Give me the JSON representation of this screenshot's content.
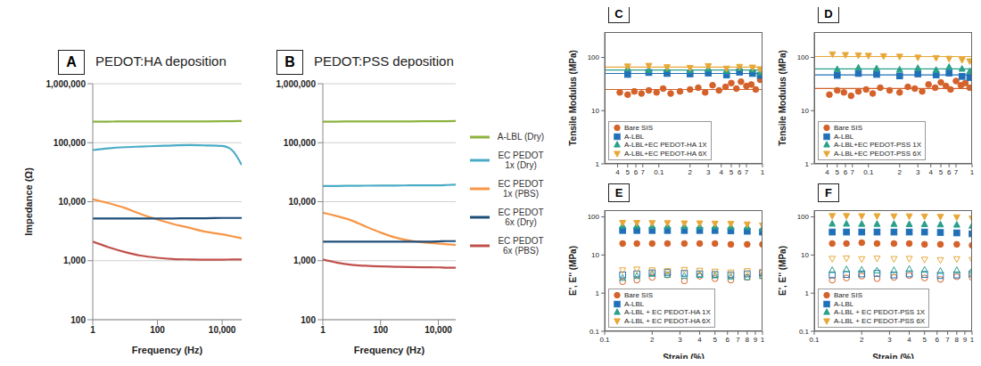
{
  "chart_data": [
    {
      "type": "line",
      "panel_label": "A",
      "title": "PEDOT:HA deposition",
      "x_label": "Frequency (Hz)",
      "y_label": "Impedance (Ω)",
      "log": true,
      "grid": true,
      "x": [
        1,
        3,
        10,
        30,
        100,
        300,
        1000,
        3000,
        10000,
        20000,
        40000
      ],
      "xlim": [
        1,
        40000
      ],
      "xticks": [
        1,
        100,
        {
          "value": 10000,
          "label": "10,000"
        }
      ],
      "ylim": [
        100,
        1000000
      ],
      "yticks": [
        100,
        {
          "value": 1000,
          "label": "1,000"
        },
        {
          "value": 10000,
          "label": "10,000"
        },
        {
          "value": 100000,
          "label": "100,000"
        },
        {
          "value": 1000000,
          "label": "1,000,000"
        }
      ],
      "series": [
        {
          "name": "A-LBL (Dry)",
          "color": "#8cb33e",
          "values": [
            228000,
            228000,
            229000,
            229000,
            230000,
            230000,
            230000,
            230000,
            231000,
            232000,
            234000
          ]
        },
        {
          "name": "EC PEDOT 1x (Dry)",
          "color": "#4bacc6",
          "values": [
            75000,
            80000,
            84000,
            86000,
            88000,
            90000,
            91000,
            90000,
            88000,
            75000,
            42000
          ]
        },
        {
          "name": "EC PEDOT 1x (PBS)",
          "color": "#f79646",
          "values": [
            11000,
            9500,
            7800,
            6200,
            5000,
            4200,
            3600,
            3100,
            2800,
            2600,
            2400
          ]
        },
        {
          "name": "EC PEDOT 6x (Dry)",
          "color": "#1f4e79",
          "values": [
            5200,
            5200,
            5200,
            5200,
            5200,
            5200,
            5250,
            5250,
            5300,
            5300,
            5300
          ]
        },
        {
          "name": "EC PEDOT 6x (PBS)",
          "color": "#c0504d",
          "values": [
            2100,
            1700,
            1400,
            1220,
            1120,
            1070,
            1050,
            1040,
            1040,
            1050,
            1050
          ]
        }
      ]
    },
    {
      "type": "line",
      "panel_label": "B",
      "title": "PEDOT:PSS deposition",
      "x_label": "Frequency (Hz)",
      "log": true,
      "grid": true,
      "legend": "right",
      "x": [
        1,
        3,
        10,
        30,
        100,
        300,
        1000,
        3000,
        10000,
        20000,
        40000
      ],
      "xlim": [
        1,
        40000
      ],
      "xticks": [
        1,
        100,
        {
          "value": 10000,
          "label": "10,000"
        }
      ],
      "ylim": [
        100,
        1000000
      ],
      "yticks": [
        100,
        {
          "value": 1000,
          "label": "1,000"
        },
        {
          "value": 10000,
          "label": "10,000"
        },
        {
          "value": 100000,
          "label": "100,000"
        },
        {
          "value": 1000000,
          "label": "1,000,000"
        }
      ],
      "series": [
        {
          "name": "A-LBL (Dry)",
          "color": "#8cb33e",
          "values": [
            228000,
            228000,
            229000,
            229000,
            230000,
            230000,
            230000,
            231000,
            231000,
            232000,
            233000
          ]
        },
        {
          "name": "EC PEDOT 1x (Dry)",
          "color": "#4bacc6",
          "values": [
            18500,
            18500,
            18600,
            18700,
            18800,
            18800,
            18900,
            19000,
            19000,
            19200,
            19500
          ]
        },
        {
          "name": "EC PEDOT 1x (PBS)",
          "color": "#f79646",
          "values": [
            6500,
            5700,
            4800,
            3800,
            3000,
            2500,
            2200,
            2050,
            1950,
            1900,
            1850
          ]
        },
        {
          "name": "EC PEDOT 6x (Dry)",
          "color": "#1f4e79",
          "values": [
            2100,
            2100,
            2100,
            2100,
            2100,
            2100,
            2100,
            2100,
            2120,
            2150,
            2150
          ]
        },
        {
          "name": "EC PEDOT 6x (PBS)",
          "color": "#c0504d",
          "values": [
            1050,
            930,
            850,
            820,
            800,
            790,
            780,
            775,
            770,
            760,
            760
          ]
        }
      ]
    },
    {
      "type": "scatter",
      "panel_label": "C",
      "y_label": "Tensile Modulus (MPa)",
      "log": true,
      "legend": "bottom-left",
      "xlim": [
        0.03,
        1
      ],
      "xticks": [
        {
          "value": 0.04,
          "label": "4"
        },
        {
          "value": 0.05,
          "label": "5"
        },
        {
          "value": 0.06,
          "label": "6"
        },
        {
          "value": 0.07,
          "label": "7"
        },
        0.1,
        {
          "value": 0.2,
          "label": "2"
        },
        {
          "value": 0.3,
          "label": "3"
        },
        {
          "value": 0.4,
          "label": "4"
        },
        {
          "value": 0.5,
          "label": "5"
        },
        {
          "value": 0.6,
          "label": "6"
        },
        {
          "value": 0.7,
          "label": "7"
        },
        1
      ],
      "ylim": [
        1,
        300
      ],
      "yticks": [
        1,
        10,
        100
      ],
      "series": [
        {
          "name": "Bare SIS",
          "color": "#d4622a",
          "marker": "circle",
          "fit": 25,
          "x": [
            0.042,
            0.05,
            0.058,
            0.068,
            0.08,
            0.095,
            0.11,
            0.13,
            0.16,
            0.2,
            0.24,
            0.28,
            0.33,
            0.38,
            0.44,
            0.5,
            0.56,
            0.62,
            0.7,
            0.78,
            0.86,
            0.95
          ],
          "values": [
            22,
            20,
            23,
            21,
            24,
            22,
            26,
            21,
            23,
            25,
            27,
            22,
            30,
            24,
            28,
            33,
            26,
            35,
            29,
            31,
            25,
            38
          ]
        },
        {
          "name": "A-LBL",
          "color": "#2070b8",
          "marker": "square",
          "fit": 50,
          "x": [
            0.05,
            0.08,
            0.12,
            0.2,
            0.3,
            0.45,
            0.6,
            0.8,
            0.95
          ],
          "values": [
            48,
            52,
            50,
            49,
            51,
            47,
            53,
            50,
            46
          ]
        },
        {
          "name": "A-LBL+EC PEDOT-HA 1X",
          "color": "#2aa08a",
          "marker": "triangle",
          "fit": 58,
          "x": [
            0.05,
            0.08,
            0.12,
            0.2,
            0.3,
            0.45,
            0.6,
            0.8,
            0.95
          ],
          "values": [
            62,
            58,
            60,
            57,
            61,
            55,
            63,
            59,
            52
          ]
        },
        {
          "name": "A-LBL+EC PEDOT-HA 6X",
          "color": "#e8a838",
          "marker": "triangle-down",
          "fit": 66,
          "x": [
            0.05,
            0.08,
            0.12,
            0.2,
            0.3,
            0.45,
            0.6,
            0.8,
            0.95
          ],
          "values": [
            68,
            70,
            66,
            64,
            69,
            62,
            67,
            65,
            60
          ]
        }
      ]
    },
    {
      "type": "scatter",
      "panel_label": "D",
      "y_label": "Tensile Modulus (MPa)",
      "log": true,
      "legend": "bottom-left",
      "xlim": [
        0.03,
        1
      ],
      "xticks": [
        {
          "value": 0.04,
          "label": "4"
        },
        {
          "value": 0.05,
          "label": "5"
        },
        {
          "value": 0.06,
          "label": "6"
        },
        {
          "value": 0.07,
          "label": "7"
        },
        0.1,
        {
          "value": 0.2,
          "label": "2"
        },
        {
          "value": 0.3,
          "label": "3"
        },
        {
          "value": 0.4,
          "label": "4"
        },
        {
          "value": 0.5,
          "label": "5"
        },
        {
          "value": 0.6,
          "label": "6"
        },
        {
          "value": 0.7,
          "label": "7"
        },
        1
      ],
      "ylim": [
        1,
        300
      ],
      "yticks": [
        1,
        10,
        100
      ],
      "series": [
        {
          "name": "Bare SIS",
          "color": "#d4622a",
          "marker": "circle",
          "fit": 26,
          "x": [
            0.042,
            0.05,
            0.058,
            0.068,
            0.08,
            0.095,
            0.11,
            0.13,
            0.16,
            0.2,
            0.24,
            0.28,
            0.33,
            0.38,
            0.44,
            0.5,
            0.56,
            0.62,
            0.7,
            0.78,
            0.86,
            0.95
          ],
          "values": [
            20,
            24,
            22,
            19,
            23,
            25,
            21,
            27,
            24,
            22,
            28,
            26,
            23,
            31,
            27,
            34,
            29,
            25,
            36,
            30,
            33,
            27
          ]
        },
        {
          "name": "A-LBL",
          "color": "#2070b8",
          "marker": "square",
          "fit": 47,
          "x": [
            0.05,
            0.08,
            0.12,
            0.2,
            0.3,
            0.45,
            0.6,
            0.8,
            0.95
          ],
          "values": [
            46,
            50,
            48,
            45,
            49,
            47,
            51,
            44,
            42
          ]
        },
        {
          "name": "A-LBL+EC PEDOT-PSS 1X",
          "color": "#2aa08a",
          "marker": "triangle",
          "fit": 61,
          "x": [
            0.05,
            0.08,
            0.12,
            0.2,
            0.3,
            0.45,
            0.6,
            0.8,
            0.95
          ],
          "values": [
            60,
            64,
            62,
            59,
            63,
            58,
            66,
            61,
            55
          ]
        },
        {
          "name": "A-LBL+EC PEDOT-PSS 6X",
          "color": "#e8a838",
          "marker": "triangle-down",
          "fit": 104,
          "x": [
            0.045,
            0.06,
            0.08,
            0.1,
            0.14,
            0.2,
            0.3,
            0.45,
            0.6,
            0.8,
            0.95
          ],
          "values": [
            115,
            112,
            110,
            108,
            106,
            104,
            100,
            98,
            95,
            90,
            85
          ]
        }
      ]
    },
    {
      "type": "scatter",
      "panel_label": "E",
      "x_label": "Strain (%)",
      "y_label": "E', E'' (MPa)",
      "log": true,
      "legend": "bottom-left",
      "x": [
        0.13,
        0.16,
        0.2,
        0.25,
        0.32,
        0.4,
        0.5,
        0.63,
        0.8,
        1.0
      ],
      "xlim": [
        0.1,
        1
      ],
      "xticks": [
        0.1,
        {
          "value": 0.2,
          "label": "2"
        },
        {
          "value": 0.3,
          "label": "3"
        },
        {
          "value": 0.4,
          "label": "4"
        },
        {
          "value": 0.5,
          "label": "5"
        },
        {
          "value": 0.6,
          "label": "6"
        },
        {
          "value": 0.7,
          "label": "7"
        },
        {
          "value": 0.8,
          "label": "8"
        },
        {
          "value": 0.9,
          "label": "9"
        },
        1
      ],
      "ylim": [
        0.1,
        150
      ],
      "yticks": [
        0.1,
        1,
        10,
        100
      ],
      "series": [
        {
          "name": "Bare SIS",
          "color": "#d4622a",
          "marker": "circle",
          "values": [
            20,
            20,
            20,
            20,
            20,
            20,
            20,
            19,
            19,
            19
          ],
          "loss_values": [
            2.0,
            2.2,
            2.6,
            3.0,
            2.1,
            2.8,
            2.4,
            2.2,
            2.6,
            2.8
          ]
        },
        {
          "name": "A-LBL",
          "color": "#2070b8",
          "marker": "square",
          "values": [
            44,
            44,
            44,
            44,
            44,
            44,
            44,
            43,
            42,
            40
          ],
          "loss_values": [
            3.0,
            3.2,
            3.4,
            3.5,
            3.3,
            3.2,
            3.1,
            3.0,
            3.2,
            3.4
          ]
        },
        {
          "name": "A-LBL + EC PEDOT-HA 1X",
          "color": "#2aa08a",
          "marker": "triangle",
          "values": [
            58,
            58,
            57,
            57,
            57,
            56,
            56,
            55,
            54,
            50
          ],
          "loss_values": [
            2.5,
            2.8,
            3.2,
            3.0,
            2.8,
            3.0,
            2.9,
            2.7,
            2.6,
            2.8
          ]
        },
        {
          "name": "A-LBL + EC PEDOT-HA 6X",
          "color": "#e8a838",
          "marker": "triangle-down",
          "values": [
            70,
            70,
            69,
            69,
            68,
            68,
            67,
            66,
            64,
            60
          ],
          "loss_values": [
            4.0,
            4.2,
            4.0,
            3.8,
            4.1,
            3.9,
            3.7,
            3.5,
            3.8,
            3.6
          ]
        }
      ]
    },
    {
      "type": "scatter",
      "panel_label": "F",
      "x_label": "Strain (%)",
      "y_label": "E', E'' (MPa)",
      "log": true,
      "legend": "bottom-left",
      "x": [
        0.13,
        0.16,
        0.2,
        0.25,
        0.32,
        0.4,
        0.5,
        0.63,
        0.8,
        1.0
      ],
      "xlim": [
        0.1,
        1
      ],
      "xticks": [
        0.1,
        {
          "value": 0.2,
          "label": "2"
        },
        {
          "value": 0.3,
          "label": "3"
        },
        {
          "value": 0.4,
          "label": "4"
        },
        {
          "value": 0.5,
          "label": "5"
        },
        {
          "value": 0.6,
          "label": "6"
        },
        {
          "value": 0.7,
          "label": "7"
        },
        {
          "value": 0.8,
          "label": "8"
        },
        {
          "value": 0.9,
          "label": "9"
        },
        1
      ],
      "ylim": [
        0.1,
        150
      ],
      "yticks": [
        0.1,
        1,
        10,
        100
      ],
      "series": [
        {
          "name": "Bare SIS",
          "color": "#d4622a",
          "marker": "circle",
          "values": [
            20,
            20,
            21,
            20,
            20,
            20,
            19,
            19,
            19,
            18
          ],
          "loss_values": [
            2.2,
            2.5,
            2.8,
            2.4,
            2.6,
            2.9,
            2.5,
            2.3,
            2.7,
            2.6
          ]
        },
        {
          "name": "A-LBL",
          "color": "#2070b8",
          "marker": "square",
          "values": [
            40,
            40,
            40,
            40,
            40,
            40,
            40,
            39,
            38,
            36
          ],
          "loss_values": [
            3.0,
            3.1,
            3.2,
            3.3,
            3.0,
            3.2,
            3.1,
            2.9,
            3.0,
            3.2
          ]
        },
        {
          "name": "A-LBL + EC PEDOT-PSS 1X",
          "color": "#2aa08a",
          "marker": "triangle",
          "values": [
            66,
            66,
            65,
            65,
            65,
            64,
            64,
            63,
            62,
            58
          ],
          "loss_values": [
            4.0,
            4.2,
            4.1,
            3.9,
            4.0,
            4.3,
            4.1,
            3.8,
            4.0,
            3.9
          ]
        },
        {
          "name": "A-LBL + EC PEDOT-PSS 6X",
          "color": "#e8a838",
          "marker": "triangle-down",
          "values": [
            106,
            106,
            105,
            105,
            104,
            104,
            103,
            101,
            98,
            92
          ],
          "loss_values": [
            8.0,
            8.2,
            7.8,
            8.1,
            7.9,
            8.0,
            7.6,
            7.4,
            7.8,
            7.5
          ]
        }
      ]
    }
  ]
}
